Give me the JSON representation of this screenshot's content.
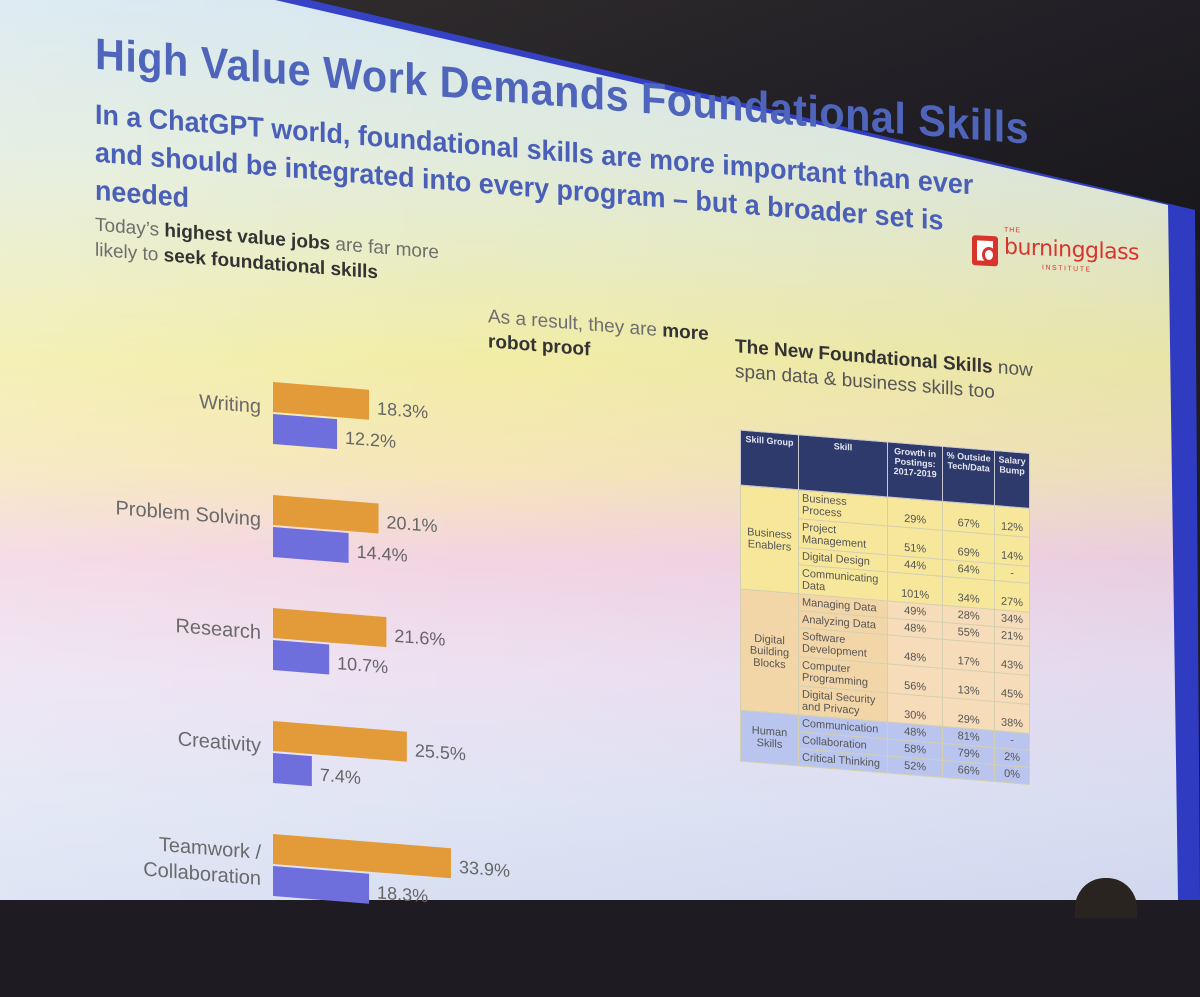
{
  "slide": {
    "title": "High Value Work Demands Foundational Skills",
    "subtitle": "In a ChatGPT world, foundational skills are more important than ever and should be integrated into every program – but a broader set is needed",
    "logo": {
      "the": "THE",
      "name": "burningglass",
      "institute": "INSTITUTE"
    },
    "lead": {
      "part1": "Today’s ",
      "bold1": "highest value jobs",
      "part2": " are far more likely to ",
      "bold2": "seek foundational skills"
    },
    "lead2": {
      "part1": "As a result, they are ",
      "bold1": "more robot proof"
    },
    "lead3": {
      "bold1": "The New Foundational Skills",
      "part1": " now span data & business skills too"
    }
  },
  "chart_data": {
    "type": "bar",
    "orientation": "horizontal",
    "categories": [
      "Writing",
      "Problem Solving",
      "Research",
      "Creativity",
      "Teamwork / Collaboration"
    ],
    "series": [
      {
        "values": [
          18.3,
          20.1,
          21.6,
          25.5,
          33.9
        ],
        "color": "#e39a38"
      },
      {
        "values": [
          12.2,
          14.4,
          10.7,
          7.4,
          18.3
        ],
        "color": "#6e6fdc"
      }
    ],
    "value_labels": [
      [
        "18.3%",
        "20.1%",
        "21.6%",
        "25.5%",
        "33.9%"
      ],
      [
        "12.2%",
        "14.4%",
        "10.7%",
        "7.4%",
        "18.3%"
      ]
    ],
    "title": "",
    "xlabel": "",
    "ylabel": "",
    "xlim": [
      0,
      40
    ],
    "grid": false,
    "legend": "none"
  },
  "table": {
    "headers": [
      "Skill Group",
      "Skill",
      "Growth in Postings: 2017-2019",
      "% Outside Tech/Data",
      "Salary Bump"
    ],
    "groups": [
      {
        "name": "Business Enablers",
        "rows": [
          [
            "Business Process",
            "29%",
            "67%",
            "12%"
          ],
          [
            "Project Management",
            "51%",
            "69%",
            "14%"
          ],
          [
            "Digital Design",
            "44%",
            "64%",
            "-"
          ],
          [
            "Communicating Data",
            "101%",
            "34%",
            "27%"
          ]
        ]
      },
      {
        "name": "Digital Building Blocks",
        "rows": [
          [
            "Managing Data",
            "49%",
            "28%",
            "34%"
          ],
          [
            "Analyzing Data",
            "48%",
            "55%",
            "21%"
          ],
          [
            "Software Development",
            "48%",
            "17%",
            "43%"
          ],
          [
            "Computer Programming",
            "56%",
            "13%",
            "45%"
          ],
          [
            "Digital Security and Privacy",
            "30%",
            "29%",
            "38%"
          ]
        ]
      },
      {
        "name": "Human Skills",
        "rows": [
          [
            "Communication",
            "48%",
            "81%",
            "-"
          ],
          [
            "Collaboration",
            "58%",
            "79%",
            "2%"
          ],
          [
            "Critical Thinking",
            "52%",
            "66%",
            "0%"
          ]
        ]
      }
    ]
  },
  "colors": {
    "title": "#4f65bb",
    "accent_orange": "#e39a38",
    "accent_purple": "#6e6fdc",
    "table_header": "#2f3a6c"
  }
}
